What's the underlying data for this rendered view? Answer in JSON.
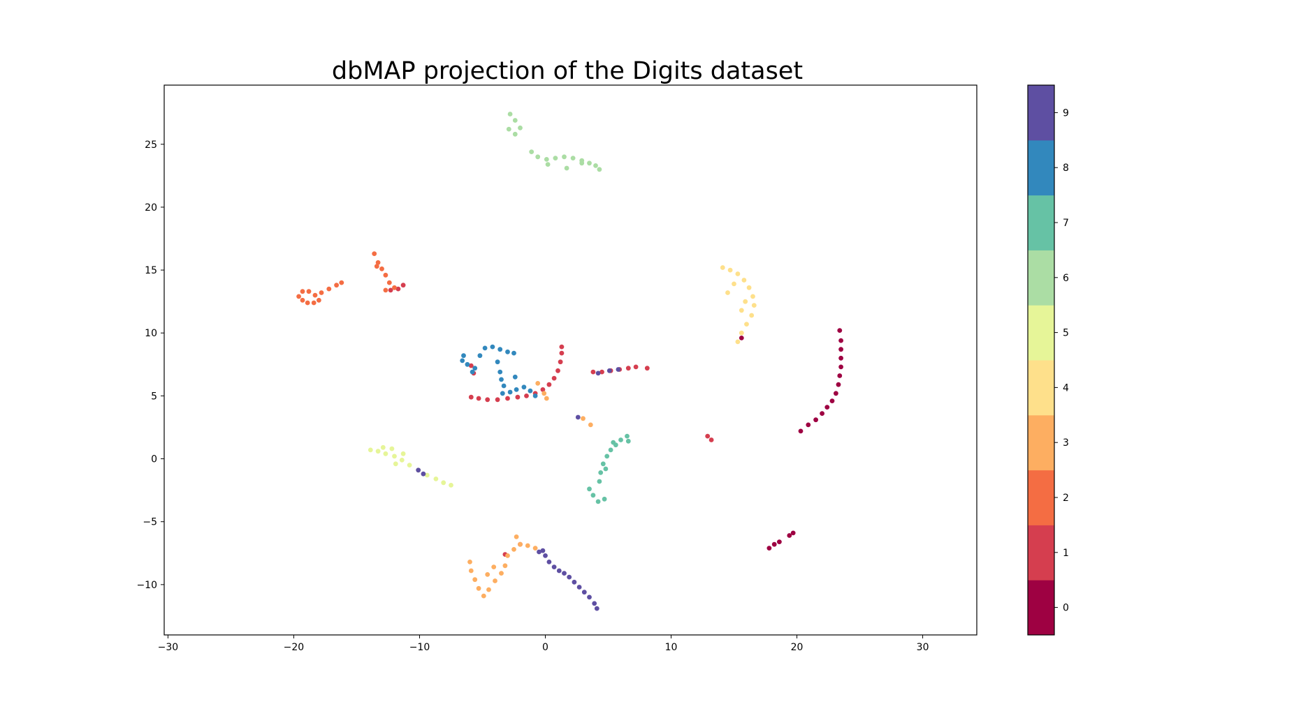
{
  "chart_data": {
    "type": "scatter",
    "title": "dbMAP projection of the Digits dataset",
    "xlabel": "",
    "ylabel": "",
    "xlim": [
      -30.3,
      34.3
    ],
    "ylim": [
      -14.0,
      29.7
    ],
    "xticks": [
      -30,
      -20,
      -10,
      0,
      10,
      20,
      30
    ],
    "xtick_labels": [
      "−30",
      "−20",
      "−10",
      "0",
      "10",
      "20",
      "30"
    ],
    "yticks": [
      -10,
      -5,
      0,
      5,
      10,
      15,
      20,
      25
    ],
    "ytick_labels": [
      "−10",
      "−5",
      "0",
      "5",
      "10",
      "15",
      "20",
      "25"
    ],
    "grid": false,
    "colorbar": {
      "range": [
        -0.5,
        9.5
      ],
      "ticks": [
        0,
        1,
        2,
        3,
        4,
        5,
        6,
        7,
        8,
        9
      ],
      "tick_labels": [
        "0",
        "1",
        "2",
        "3",
        "4",
        "5",
        "6",
        "7",
        "8",
        "9"
      ],
      "colors": [
        "#9e0142",
        "#d53e4f",
        "#f46d43",
        "#fdae61",
        "#fee08b",
        "#e6f598",
        "#abdda4",
        "#66c2a5",
        "#3288bd",
        "#5e4fa2"
      ]
    },
    "series": [
      {
        "label": 0,
        "points": [
          [
            20.3,
            2.2
          ],
          [
            20.9,
            2.7
          ],
          [
            21.5,
            3.1
          ],
          [
            22.0,
            3.6
          ],
          [
            22.4,
            4.1
          ],
          [
            22.8,
            4.6
          ],
          [
            23.1,
            5.2
          ],
          [
            23.3,
            5.9
          ],
          [
            23.4,
            6.6
          ],
          [
            23.5,
            7.3
          ],
          [
            23.5,
            8.0
          ],
          [
            23.5,
            8.7
          ],
          [
            23.5,
            9.4
          ],
          [
            23.4,
            10.2
          ],
          [
            17.8,
            -7.1
          ],
          [
            18.2,
            -6.8
          ],
          [
            18.6,
            -6.6
          ],
          [
            19.4,
            -6.1
          ],
          [
            19.7,
            -5.9
          ],
          [
            15.6,
            9.6
          ]
        ]
      },
      {
        "label": 1,
        "points": [
          [
            -5.9,
            4.9
          ],
          [
            -5.3,
            4.8
          ],
          [
            -4.6,
            4.7
          ],
          [
            -3.8,
            4.7
          ],
          [
            -3.0,
            4.8
          ],
          [
            -2.2,
            4.9
          ],
          [
            -1.5,
            5.0
          ],
          [
            -0.8,
            5.2
          ],
          [
            -0.2,
            5.5
          ],
          [
            0.3,
            5.9
          ],
          [
            0.7,
            6.4
          ],
          [
            1.0,
            7.0
          ],
          [
            1.2,
            7.7
          ],
          [
            1.3,
            8.4
          ],
          [
            1.3,
            8.9
          ],
          [
            3.8,
            6.9
          ],
          [
            4.5,
            6.9
          ],
          [
            5.2,
            7.0
          ],
          [
            5.9,
            7.1
          ],
          [
            6.6,
            7.2
          ],
          [
            7.2,
            7.3
          ],
          [
            8.1,
            7.2
          ],
          [
            12.9,
            1.8
          ],
          [
            13.2,
            1.5
          ],
          [
            -12.3,
            13.4
          ],
          [
            -11.7,
            13.5
          ],
          [
            -11.3,
            13.8
          ],
          [
            -5.9,
            7.4
          ],
          [
            -5.7,
            6.8
          ],
          [
            -2.0,
            -6.8
          ],
          [
            -3.2,
            -7.6
          ]
        ]
      },
      {
        "label": 2,
        "points": [
          [
            -19.6,
            12.9
          ],
          [
            -19.3,
            12.6
          ],
          [
            -18.9,
            12.4
          ],
          [
            -18.4,
            12.4
          ],
          [
            -18.0,
            12.6
          ],
          [
            -18.3,
            13.0
          ],
          [
            -18.8,
            13.3
          ],
          [
            -19.3,
            13.3
          ],
          [
            -17.8,
            13.2
          ],
          [
            -17.2,
            13.5
          ],
          [
            -16.6,
            13.8
          ],
          [
            -16.2,
            14.0
          ],
          [
            -13.6,
            16.3
          ],
          [
            -13.3,
            15.6
          ],
          [
            -13.0,
            15.1
          ],
          [
            -12.7,
            14.6
          ],
          [
            -12.4,
            14.0
          ],
          [
            -12.7,
            13.4
          ],
          [
            -12.0,
            13.6
          ],
          [
            -13.4,
            15.3
          ]
        ]
      },
      {
        "label": 3,
        "points": [
          [
            -6.0,
            -8.2
          ],
          [
            -5.9,
            -8.9
          ],
          [
            -5.6,
            -9.6
          ],
          [
            -5.3,
            -10.3
          ],
          [
            -4.9,
            -10.9
          ],
          [
            -4.5,
            -10.4
          ],
          [
            -4.0,
            -9.7
          ],
          [
            -3.5,
            -9.1
          ],
          [
            -3.2,
            -8.5
          ],
          [
            -4.1,
            -8.6
          ],
          [
            -4.6,
            -9.2
          ],
          [
            -3.0,
            -7.7
          ],
          [
            -2.5,
            -7.2
          ],
          [
            -2.0,
            -6.8
          ],
          [
            -1.4,
            -6.9
          ],
          [
            -0.8,
            -7.1
          ],
          [
            -2.3,
            -6.2
          ],
          [
            -0.6,
            6.0
          ],
          [
            -0.1,
            5.2
          ],
          [
            0.1,
            4.8
          ],
          [
            3.0,
            3.2
          ],
          [
            3.6,
            2.7
          ]
        ]
      },
      {
        "label": 4,
        "points": [
          [
            14.1,
            15.2
          ],
          [
            14.7,
            15.0
          ],
          [
            15.3,
            14.7
          ],
          [
            15.8,
            14.2
          ],
          [
            16.2,
            13.6
          ],
          [
            16.5,
            12.9
          ],
          [
            16.6,
            12.2
          ],
          [
            16.4,
            11.4
          ],
          [
            16.0,
            10.7
          ],
          [
            15.6,
            10.0
          ],
          [
            15.3,
            9.3
          ],
          [
            15.6,
            11.8
          ],
          [
            15.9,
            12.5
          ],
          [
            14.5,
            13.2
          ],
          [
            15.0,
            13.9
          ]
        ]
      },
      {
        "label": 5,
        "points": [
          [
            -13.9,
            0.7
          ],
          [
            -13.3,
            0.6
          ],
          [
            -12.7,
            0.4
          ],
          [
            -12.0,
            0.2
          ],
          [
            -11.4,
            -0.1
          ],
          [
            -10.8,
            -0.5
          ],
          [
            -10.1,
            -0.9
          ],
          [
            -9.4,
            -1.3
          ],
          [
            -8.7,
            -1.6
          ],
          [
            -8.1,
            -1.9
          ],
          [
            -7.5,
            -2.1
          ],
          [
            -12.9,
            0.9
          ],
          [
            -12.2,
            0.8
          ],
          [
            -11.3,
            0.4
          ],
          [
            -11.9,
            -0.4
          ]
        ]
      },
      {
        "label": 6,
        "points": [
          [
            -2.8,
            27.4
          ],
          [
            -2.4,
            26.9
          ],
          [
            -2.0,
            26.3
          ],
          [
            -2.9,
            26.2
          ],
          [
            -2.4,
            25.8
          ],
          [
            -1.1,
            24.4
          ],
          [
            -0.6,
            24.0
          ],
          [
            0.1,
            23.8
          ],
          [
            0.8,
            23.9
          ],
          [
            1.5,
            24.0
          ],
          [
            2.2,
            23.9
          ],
          [
            2.9,
            23.7
          ],
          [
            3.5,
            23.5
          ],
          [
            4.0,
            23.3
          ],
          [
            4.3,
            23.0
          ],
          [
            0.2,
            23.4
          ],
          [
            1.7,
            23.1
          ],
          [
            2.9,
            23.5
          ]
        ]
      },
      {
        "label": 7,
        "points": [
          [
            3.5,
            -2.4
          ],
          [
            3.8,
            -2.9
          ],
          [
            4.2,
            -3.4
          ],
          [
            4.7,
            -3.2
          ],
          [
            4.3,
            -1.8
          ],
          [
            4.4,
            -1.1
          ],
          [
            4.6,
            -0.4
          ],
          [
            4.9,
            0.2
          ],
          [
            5.2,
            0.7
          ],
          [
            5.6,
            1.1
          ],
          [
            6.0,
            1.5
          ],
          [
            6.5,
            1.8
          ],
          [
            6.6,
            1.4
          ],
          [
            5.4,
            1.3
          ],
          [
            4.8,
            -0.8
          ]
        ]
      },
      {
        "label": 8,
        "points": [
          [
            -6.6,
            7.8
          ],
          [
            -6.5,
            8.2
          ],
          [
            -6.2,
            7.5
          ],
          [
            -5.8,
            6.9
          ],
          [
            -5.6,
            7.2
          ],
          [
            -5.2,
            8.2
          ],
          [
            -4.8,
            8.8
          ],
          [
            -4.2,
            8.9
          ],
          [
            -3.6,
            8.7
          ],
          [
            -3.0,
            8.5
          ],
          [
            -2.5,
            8.4
          ],
          [
            -3.8,
            7.7
          ],
          [
            -3.6,
            6.9
          ],
          [
            -3.5,
            6.3
          ],
          [
            -3.3,
            5.8
          ],
          [
            -3.4,
            5.2
          ],
          [
            -2.8,
            5.3
          ],
          [
            -2.3,
            5.5
          ],
          [
            -1.7,
            5.7
          ],
          [
            -1.2,
            5.4
          ],
          [
            -2.4,
            6.5
          ],
          [
            -0.8,
            5.0
          ]
        ]
      },
      {
        "label": 9,
        "points": [
          [
            -0.5,
            -7.4
          ],
          [
            0.0,
            -7.7
          ],
          [
            0.3,
            -8.2
          ],
          [
            0.7,
            -8.6
          ],
          [
            1.1,
            -8.9
          ],
          [
            1.5,
            -9.1
          ],
          [
            1.9,
            -9.4
          ],
          [
            2.3,
            -9.8
          ],
          [
            2.7,
            -10.2
          ],
          [
            3.1,
            -10.6
          ],
          [
            3.5,
            -11.0
          ],
          [
            3.9,
            -11.5
          ],
          [
            4.1,
            -11.9
          ],
          [
            -0.2,
            -7.3
          ],
          [
            4.2,
            6.8
          ],
          [
            5.1,
            7.0
          ],
          [
            5.8,
            7.1
          ],
          [
            -9.7,
            -1.2
          ],
          [
            -10.1,
            -0.9
          ],
          [
            2.6,
            3.3
          ]
        ]
      }
    ]
  }
}
